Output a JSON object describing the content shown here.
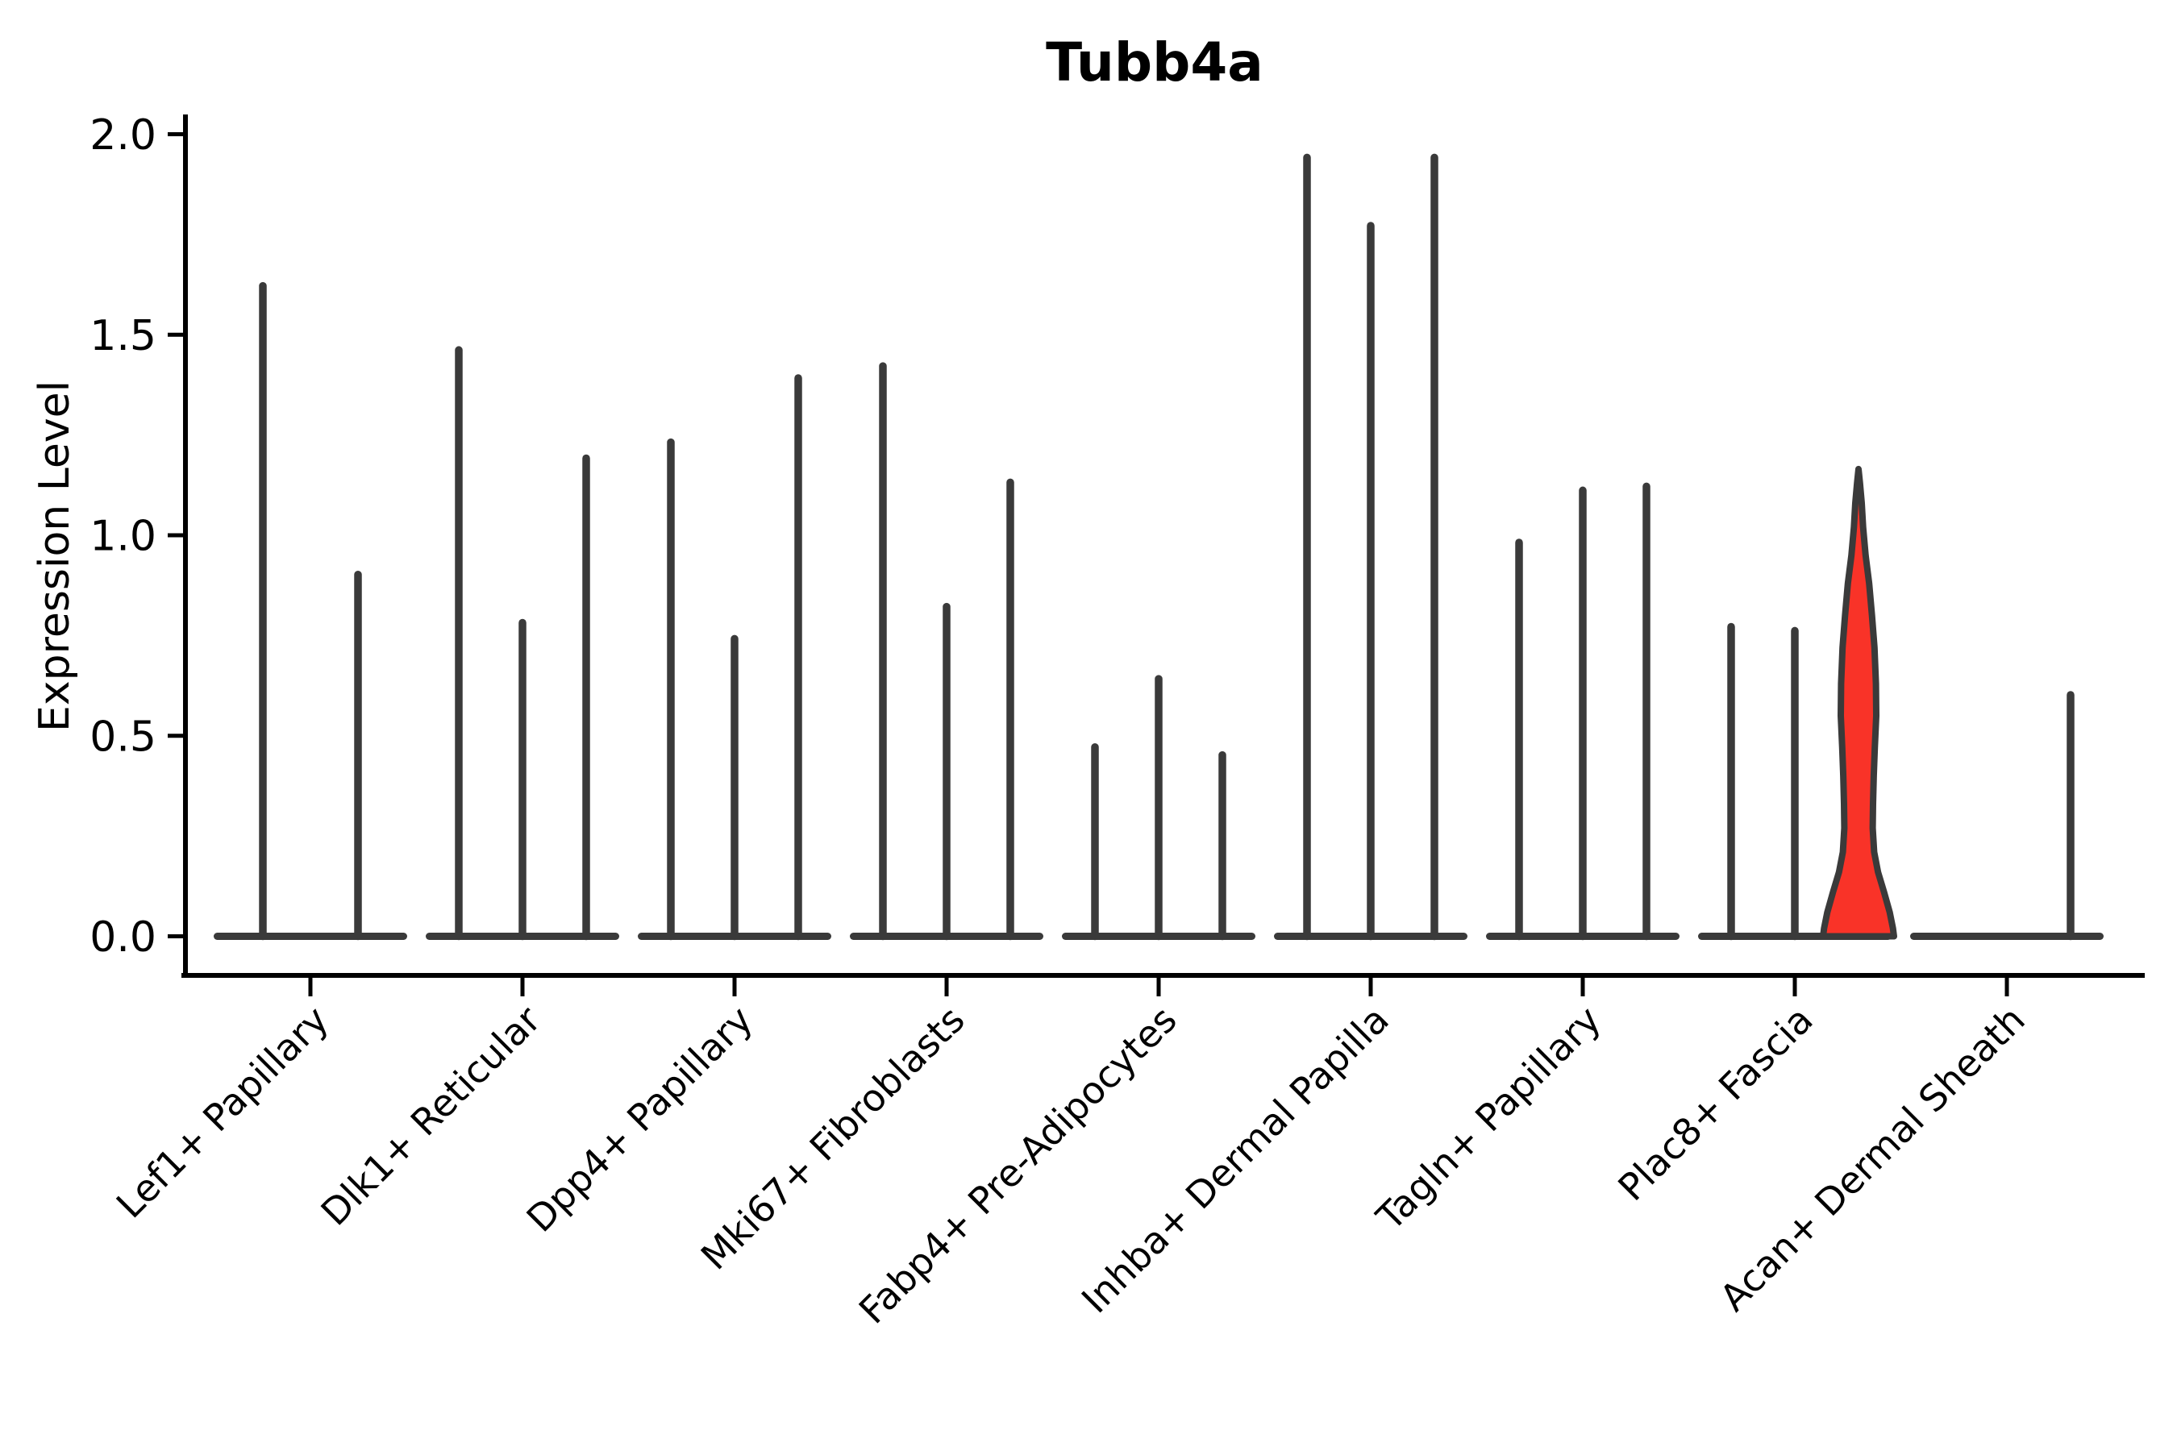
{
  "chart_data": {
    "type": "violin",
    "title": "Tubb4a",
    "ylabel": "Expression Level",
    "xlabel": "",
    "ylim": [
      0,
      2.0
    ],
    "grid": false,
    "legend": "none",
    "yticks": [
      {
        "label": "0.0",
        "value": 0
      },
      {
        "label": "0.5",
        "value": 0.5
      },
      {
        "label": "1.0",
        "value": 1.0
      },
      {
        "label": "1.5",
        "value": 1.5
      },
      {
        "label": "2.0",
        "value": 2.0
      }
    ],
    "categories": [
      "Lef1+ Papillary",
      "Dlk1+ Reticular",
      "Dpp4+ Papillary",
      "Mki67+ Fibroblasts",
      "Fabp4+ Pre-Adipocytes",
      "Inhba+ Dermal Papilla",
      "Tagln+ Papillary",
      "Plac8+ Fascia",
      "Acan+ Dermal Sheath"
    ],
    "series": [
      {
        "category": "Lef1+ Papillary",
        "violin_max_values": [
          1.63,
          0.91
        ],
        "highlight_index": null
      },
      {
        "category": "Dlk1+ Reticular",
        "violin_max_values": [
          1.47,
          0.79,
          1.2
        ],
        "highlight_index": null
      },
      {
        "category": "Dpp4+ Papillary",
        "violin_max_values": [
          1.24,
          0.75,
          1.4
        ],
        "highlight_index": null
      },
      {
        "category": "Mki67+ Fibroblasts",
        "violin_max_values": [
          1.43,
          0.83,
          1.14
        ],
        "highlight_index": null
      },
      {
        "category": "Fabp4+ Pre-Adipocytes",
        "violin_max_values": [
          0.48,
          0.65,
          0.46
        ],
        "highlight_index": null
      },
      {
        "category": "Inhba+ Dermal Papilla",
        "violin_max_values": [
          1.95,
          1.78,
          1.95
        ],
        "highlight_index": null
      },
      {
        "category": "Tagln+ Papillary",
        "violin_max_values": [
          0.99,
          1.12,
          1.13
        ],
        "highlight_index": null
      },
      {
        "category": "Plac8+ Fascia",
        "violin_max_values": [
          0.78,
          0.77,
          1.17
        ],
        "highlight_index": 2
      },
      {
        "category": "Acan+ Dermal Sheath",
        "violin_max_values": [
          0,
          0,
          0.61
        ],
        "highlight_index": null
      }
    ],
    "highlight_violin": {
      "category": "Plac8+ Fascia",
      "position_in_group": 3,
      "max_value": 1.17,
      "density_profile": [
        [
          1.165,
          0.0
        ],
        [
          1.13,
          0.04
        ],
        [
          1.08,
          0.09
        ],
        [
          1.02,
          0.13
        ],
        [
          0.95,
          0.2
        ],
        [
          0.88,
          0.3
        ],
        [
          0.8,
          0.38
        ],
        [
          0.72,
          0.45
        ],
        [
          0.63,
          0.49
        ],
        [
          0.55,
          0.5
        ],
        [
          0.47,
          0.46
        ],
        [
          0.4,
          0.43
        ],
        [
          0.33,
          0.41
        ],
        [
          0.27,
          0.4
        ],
        [
          0.21,
          0.44
        ],
        [
          0.16,
          0.55
        ],
        [
          0.11,
          0.72
        ],
        [
          0.06,
          0.88
        ],
        [
          0.02,
          0.97
        ],
        [
          0.0,
          1.0
        ]
      ]
    },
    "colors": {
      "highlight_fill": "#f93328",
      "violin_stroke": "#3a3a3a",
      "axis": "#000000",
      "background": "#ffffff",
      "text": "#000000"
    }
  }
}
